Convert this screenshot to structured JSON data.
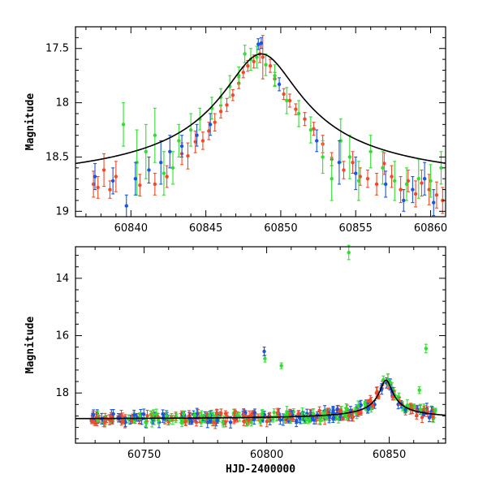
{
  "chart_data": [
    {
      "type": "scatter",
      "panel": "top",
      "ylabel": "Magnitude",
      "xlabel": "",
      "xlim": [
        60836.3,
        60861.0
      ],
      "ylim": [
        19.05,
        17.3
      ],
      "y_inverted": true,
      "x_ticks": [
        60840,
        60845,
        60850,
        60855,
        60860
      ],
      "x_tick_labels": [
        "60840",
        "60845",
        "60850",
        "60855",
        "60860"
      ],
      "y_ticks": [
        17.5,
        18,
        18.5,
        19
      ],
      "y_tick_labels": [
        "17.5",
        "18",
        "18.5",
        "19"
      ],
      "model_curve": {
        "peak_time": 60848.7,
        "peak_mag": 17.55,
        "baseline_mag": 18.82,
        "timescale": 2.6
      },
      "series": [
        {
          "color": "#f04a2a",
          "points": [
            [
              60837.5,
              18.75,
              0.12
            ],
            [
              60837.8,
              18.78,
              0.1
            ],
            [
              60838.2,
              18.62,
              0.15
            ],
            [
              60838.6,
              18.8,
              0.08
            ],
            [
              60839.0,
              18.68,
              0.14
            ],
            [
              60840.6,
              18.76,
              0.1
            ],
            [
              60841.6,
              18.75,
              0.1
            ],
            [
              60842.4,
              18.68,
              0.1
            ],
            [
              60843.4,
              18.47,
              0.1
            ],
            [
              60843.8,
              18.49,
              0.12
            ],
            [
              60844.3,
              18.36,
              0.1
            ],
            [
              60844.8,
              18.35,
              0.08
            ],
            [
              60845.2,
              18.26,
              0.08
            ],
            [
              60845.6,
              18.18,
              0.08
            ],
            [
              60846.0,
              18.08,
              0.06
            ],
            [
              60846.4,
              18.02,
              0.06
            ],
            [
              60846.8,
              17.93,
              0.05
            ],
            [
              60847.2,
              17.82,
              0.05
            ],
            [
              60847.5,
              17.72,
              0.05
            ],
            [
              60847.8,
              17.66,
              0.05
            ],
            [
              60848.2,
              17.62,
              0.06
            ],
            [
              60848.6,
              17.55,
              0.08
            ],
            [
              60848.8,
              17.58,
              0.2
            ],
            [
              60849.3,
              17.66,
              0.06
            ],
            [
              60849.6,
              17.78,
              0.06
            ],
            [
              60850.2,
              17.92,
              0.05
            ],
            [
              60850.6,
              17.98,
              0.06
            ],
            [
              60851.0,
              18.06,
              0.05
            ],
            [
              60851.6,
              18.15,
              0.06
            ],
            [
              60852.2,
              18.24,
              0.06
            ],
            [
              60852.8,
              18.38,
              0.08
            ],
            [
              60853.4,
              18.52,
              0.06
            ],
            [
              60854.2,
              18.62,
              0.08
            ],
            [
              60854.8,
              18.55,
              0.1
            ],
            [
              60855.3,
              18.68,
              0.08
            ],
            [
              60855.8,
              18.7,
              0.08
            ],
            [
              60856.4,
              18.75,
              0.1
            ],
            [
              60856.9,
              18.56,
              0.1
            ],
            [
              60857.4,
              18.68,
              0.1
            ],
            [
              60858.0,
              18.8,
              0.12
            ],
            [
              60858.5,
              18.72,
              0.1
            ],
            [
              60859.0,
              18.84,
              0.12
            ],
            [
              60859.4,
              18.74,
              0.12
            ],
            [
              60859.9,
              18.8,
              0.14
            ],
            [
              60860.4,
              18.85,
              0.12
            ],
            [
              60860.8,
              18.9,
              0.12
            ]
          ]
        },
        {
          "color": "#33dd33",
          "points": [
            [
              60839.5,
              18.2,
              0.2
            ],
            [
              60840.4,
              18.55,
              0.3
            ],
            [
              60841.0,
              18.45,
              0.25
            ],
            [
              60841.6,
              18.3,
              0.25
            ],
            [
              60842.2,
              18.65,
              0.2
            ],
            [
              60842.8,
              18.6,
              0.15
            ],
            [
              60843.2,
              18.35,
              0.15
            ],
            [
              60844.0,
              18.25,
              0.15
            ],
            [
              60844.6,
              18.15,
              0.1
            ],
            [
              60845.4,
              18.05,
              0.1
            ],
            [
              60846.0,
              17.95,
              0.08
            ],
            [
              60846.6,
              17.85,
              0.1
            ],
            [
              60847.2,
              17.75,
              0.08
            ],
            [
              60847.6,
              17.55,
              0.08
            ],
            [
              60848.0,
              17.6,
              0.1
            ],
            [
              60848.4,
              17.58,
              0.1
            ],
            [
              60849.0,
              17.65,
              0.1
            ],
            [
              60849.6,
              17.75,
              0.1
            ],
            [
              60850.4,
              17.98,
              0.12
            ],
            [
              60851.2,
              18.1,
              0.12
            ],
            [
              60852.0,
              18.25,
              0.12
            ],
            [
              60852.8,
              18.5,
              0.15
            ],
            [
              60853.4,
              18.7,
              0.2
            ],
            [
              60854.0,
              18.35,
              0.2
            ],
            [
              60854.6,
              18.5,
              0.2
            ],
            [
              60855.2,
              18.72,
              0.18
            ],
            [
              60856.0,
              18.45,
              0.15
            ],
            [
              60856.8,
              18.6,
              0.15
            ],
            [
              60857.6,
              18.72,
              0.18
            ],
            [
              60858.4,
              18.75,
              0.15
            ],
            [
              60859.2,
              18.7,
              0.18
            ],
            [
              60860.0,
              18.72,
              0.15
            ],
            [
              60860.7,
              18.6,
              0.15
            ]
          ]
        },
        {
          "color": "#1a55dd",
          "points": [
            [
              60837.6,
              18.68,
              0.12
            ],
            [
              60838.8,
              18.72,
              0.12
            ],
            [
              60839.7,
              18.95,
              0.1
            ],
            [
              60840.3,
              18.7,
              0.15
            ],
            [
              60841.2,
              18.62,
              0.12
            ],
            [
              60842.0,
              18.55,
              0.2
            ],
            [
              60842.6,
              18.45,
              0.15
            ],
            [
              60843.4,
              18.4,
              0.1
            ],
            [
              60844.4,
              18.3,
              0.1
            ],
            [
              60845.3,
              18.2,
              0.1
            ],
            [
              60848.5,
              17.46,
              0.05
            ],
            [
              60848.7,
              17.45,
              0.05
            ],
            [
              60849.9,
              17.83,
              0.06
            ],
            [
              60852.4,
              18.35,
              0.1
            ],
            [
              60853.9,
              18.55,
              0.2
            ],
            [
              60855.0,
              18.65,
              0.15
            ],
            [
              60857.0,
              18.75,
              0.12
            ],
            [
              60858.2,
              18.9,
              0.1
            ],
            [
              60858.8,
              18.8,
              0.12
            ],
            [
              60859.6,
              18.7,
              0.15
            ],
            [
              60860.2,
              18.92,
              0.12
            ]
          ]
        }
      ]
    },
    {
      "type": "scatter",
      "panel": "bottom",
      "ylabel": "Magnitude",
      "xlabel": "HJD-2400000",
      "xlim": [
        60722,
        60873
      ],
      "ylim": [
        19.75,
        12.9
      ],
      "y_inverted": true,
      "x_ticks": [
        60750,
        60800,
        60850
      ],
      "x_tick_labels": [
        "60750",
        "60800",
        "60850"
      ],
      "y_ticks": [
        14,
        16,
        18
      ],
      "y_tick_labels": [
        "14",
        "16",
        "18"
      ],
      "model_curve": {
        "peak_time": 60848.7,
        "peak_mag": 17.55,
        "baseline_mag": 18.92,
        "timescale": 2.6
      },
      "series": [
        {
          "color": "#33dd33",
          "outliers": [
            [
              60833.5,
              13.1,
              0.25
            ],
            [
              60799.3,
              16.8,
              0.12
            ],
            [
              60806.0,
              17.05,
              0.1
            ],
            [
              60865.0,
              16.45,
              0.15
            ],
            [
              60862.3,
              17.9,
              0.12
            ]
          ]
        },
        {
          "color": "#1a55dd",
          "outliers": [
            [
              60799.0,
              16.55,
              0.15
            ]
          ]
        },
        {
          "color": "#f04a2a",
          "outliers": []
        }
      ]
    }
  ]
}
